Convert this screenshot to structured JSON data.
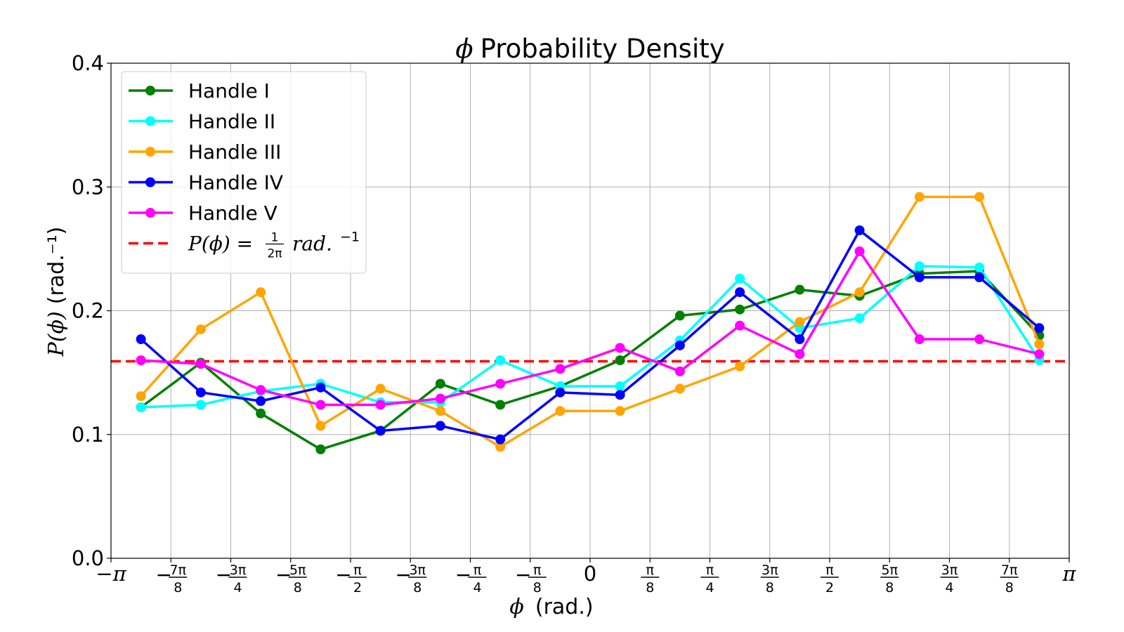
{
  "chart_data": {
    "type": "line",
    "title": "ϕ Probability Density",
    "title_symbol": "ϕ",
    "title_text": "Probability Density",
    "xlabel": "ϕ  (rad.)",
    "xlabel_symbol": "ϕ",
    "xlabel_text": "(rad.)",
    "ylabel": "P(ϕ) (rad.⁻¹)",
    "ylabel_func": "P(ϕ)",
    "ylabel_units": "(rad.⁻¹)",
    "xlim": [
      -3.14159,
      3.14159
    ],
    "ylim": [
      0.0,
      0.4
    ],
    "grid": true,
    "legend_position": "top-left",
    "x_ticks": [
      {
        "value": -3.14159,
        "label": "−π"
      },
      {
        "value": -2.74889,
        "label": "−7π/8",
        "sign": "−",
        "num": "7π",
        "den": "8"
      },
      {
        "value": -2.35619,
        "label": "−3π/4",
        "sign": "−",
        "num": "3π",
        "den": "4"
      },
      {
        "value": -1.9635,
        "label": "−5π/8",
        "sign": "−",
        "num": "5π",
        "den": "8"
      },
      {
        "value": -1.5708,
        "label": "−π/2",
        "sign": "−",
        "num": "π",
        "den": "2"
      },
      {
        "value": -1.1781,
        "label": "−3π/8",
        "sign": "−",
        "num": "3π",
        "den": "8"
      },
      {
        "value": -0.7854,
        "label": "−π/4",
        "sign": "−",
        "num": "π",
        "den": "4"
      },
      {
        "value": -0.3927,
        "label": "−π/8",
        "sign": "−",
        "num": "π",
        "den": "8"
      },
      {
        "value": 0.0,
        "label": "0"
      },
      {
        "value": 0.3927,
        "label": "π/8",
        "sign": "",
        "num": "π",
        "den": "8"
      },
      {
        "value": 0.7854,
        "label": "π/4",
        "sign": "",
        "num": "π",
        "den": "4"
      },
      {
        "value": 1.1781,
        "label": "3π/8",
        "sign": "",
        "num": "3π",
        "den": "8"
      },
      {
        "value": 1.5708,
        "label": "π/2",
        "sign": "",
        "num": "π",
        "den": "2"
      },
      {
        "value": 1.9635,
        "label": "5π/8",
        "sign": "",
        "num": "5π",
        "den": "8"
      },
      {
        "value": 2.35619,
        "label": "3π/4",
        "sign": "",
        "num": "3π",
        "den": "4"
      },
      {
        "value": 2.74889,
        "label": "7π/8",
        "sign": "",
        "num": "7π",
        "den": "8"
      },
      {
        "value": 3.14159,
        "label": "π"
      }
    ],
    "y_ticks": [
      {
        "value": 0.0,
        "label": "0.0"
      },
      {
        "value": 0.1,
        "label": "0.1"
      },
      {
        "value": 0.2,
        "label": "0.2"
      },
      {
        "value": 0.3,
        "label": "0.3"
      },
      {
        "value": 0.4,
        "label": "0.4"
      }
    ],
    "x": [
      -2.9452,
      -2.5525,
      -2.1598,
      -1.7671,
      -1.3744,
      -0.9817,
      -0.589,
      -0.1963,
      0.1963,
      0.589,
      0.9817,
      1.3744,
      1.7671,
      2.1598,
      2.5525,
      2.9452
    ],
    "series": [
      {
        "name": "Handle I",
        "color": "#008000",
        "values": [
          0.122,
          0.158,
          0.117,
          0.088,
          0.103,
          0.141,
          0.124,
          0.139,
          0.16,
          0.196,
          0.201,
          0.217,
          0.212,
          0.23,
          0.232,
          0.18
        ]
      },
      {
        "name": "Handle II",
        "color": "#00ffff",
        "values": [
          0.122,
          0.124,
          0.135,
          0.141,
          0.126,
          0.126,
          0.16,
          0.139,
          0.139,
          0.176,
          0.226,
          0.186,
          0.194,
          0.236,
          0.235,
          0.16
        ]
      },
      {
        "name": "Handle III",
        "color": "#ffa500",
        "values": [
          0.131,
          0.185,
          0.215,
          0.107,
          0.137,
          0.119,
          0.09,
          0.119,
          0.119,
          0.137,
          0.155,
          0.191,
          0.215,
          0.292,
          0.292,
          0.173
        ]
      },
      {
        "name": "Handle IV",
        "color": "#0000ff",
        "values": [
          0.177,
          0.134,
          0.127,
          0.138,
          0.103,
          0.107,
          0.096,
          0.134,
          0.132,
          0.172,
          0.215,
          0.177,
          0.265,
          0.227,
          0.227,
          0.186
        ]
      },
      {
        "name": "Handle V",
        "color": "#ff00ff",
        "values": [
          0.16,
          0.157,
          0.136,
          0.124,
          0.124,
          0.129,
          0.141,
          0.153,
          0.17,
          0.151,
          0.188,
          0.165,
          0.248,
          0.177,
          0.177,
          0.165
        ]
      }
    ],
    "reference_line": {
      "value": 0.159155,
      "color": "#ff0000",
      "style": "dashed",
      "label_prefix": "P(ϕ) =",
      "label_num": "1",
      "label_den": "2π",
      "label_suffix": "rad.",
      "label_exp": "−1"
    }
  }
}
